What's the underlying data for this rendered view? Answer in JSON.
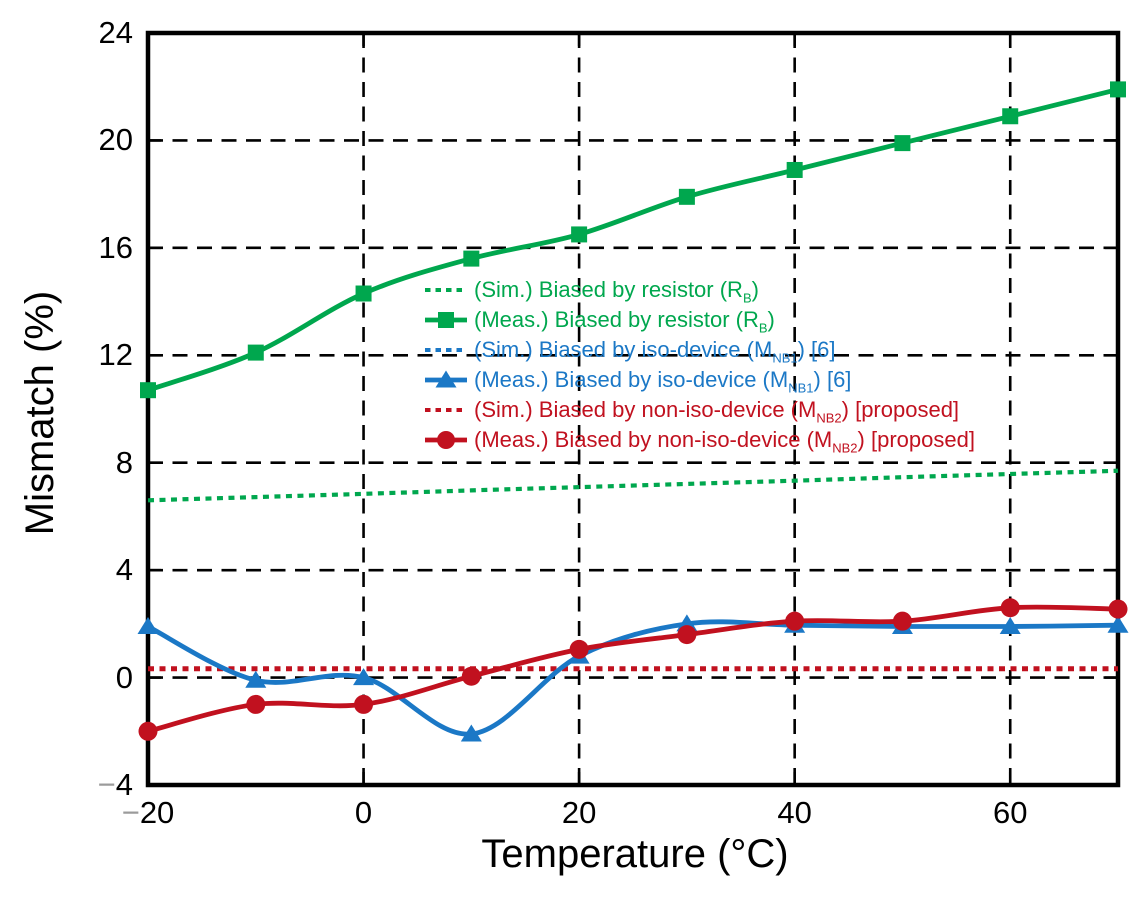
{
  "chart_data": {
    "type": "line",
    "title": "",
    "xlabel": "Temperature (°C)",
    "ylabel": "Mismatch (%)",
    "xlim": [
      -20,
      70
    ],
    "ylim": [
      -4,
      24
    ],
    "x_ticks": [
      -20,
      0,
      20,
      40,
      60
    ],
    "y_ticks": [
      -4,
      0,
      4,
      8,
      12,
      16,
      20,
      24
    ],
    "grid": "dashed black gridlines at interior ticks, boxed axes",
    "legend_position": "inside center-left, stacked rows, no border",
    "x": [
      -20,
      -10,
      0,
      10,
      20,
      30,
      40,
      50,
      60,
      70
    ],
    "series": [
      {
        "name": "(Sim.) Biased by resistor (RB)",
        "color": "#00A74E",
        "style": "dotted",
        "marker": "none",
        "values": [
          6.6,
          6.72,
          6.84,
          6.97,
          7.09,
          7.21,
          7.33,
          7.46,
          7.58,
          7.7
        ]
      },
      {
        "name": "(Meas.) Biased by resistor (RB)",
        "color": "#00A74E",
        "style": "solid",
        "marker": "square",
        "values": [
          10.7,
          12.1,
          14.3,
          15.6,
          16.5,
          17.9,
          18.9,
          19.9,
          20.9,
          21.9
        ]
      },
      {
        "name": "(Sim.) Biased by iso-device (MNB1) [6]",
        "color": "#1B78C6",
        "style": "dotted",
        "marker": "none",
        "values": [
          0.33,
          0.33,
          0.33,
          0.33,
          0.33,
          0.33,
          0.33,
          0.33,
          0.33,
          0.33
        ]
      },
      {
        "name": "(Meas.) Biased by iso-device (MNB1) [6]",
        "color": "#1B78C6",
        "style": "solid",
        "marker": "triangle",
        "values": [
          1.9,
          -0.1,
          0.0,
          -2.1,
          0.8,
          2.0,
          1.95,
          1.9,
          1.9,
          1.95
        ]
      },
      {
        "name": "(Sim.) Biased by non-iso-device (MNB2) [proposed]",
        "color": "#C1111F",
        "style": "dotted",
        "marker": "none",
        "values": [
          0.33,
          0.33,
          0.33,
          0.33,
          0.33,
          0.33,
          0.33,
          0.33,
          0.33,
          0.33
        ]
      },
      {
        "name": "(Meas.) Biased by non-iso-device (MNB2) [proposed]",
        "color": "#C1111F",
        "style": "solid",
        "marker": "circle",
        "values": [
          -2.0,
          -1.0,
          -1.0,
          0.05,
          1.05,
          1.6,
          2.1,
          2.1,
          2.6,
          2.55
        ]
      }
    ],
    "legend_items": [
      {
        "series": 0,
        "segments": [
          {
            "t": "(Sim.) Biased by resistor (R"
          },
          {
            "s": "B"
          },
          {
            "t": ")"
          }
        ]
      },
      {
        "series": 1,
        "segments": [
          {
            "t": "(Meas.) Biased by resistor (R"
          },
          {
            "s": "B"
          },
          {
            "t": ")"
          }
        ]
      },
      {
        "series": 2,
        "segments": [
          {
            "t": "(Sim.) Biased by iso-device (M"
          },
          {
            "s": "NB1"
          },
          {
            "t": ") [6]"
          }
        ]
      },
      {
        "series": 3,
        "segments": [
          {
            "t": "(Meas.) Biased by iso-device (M"
          },
          {
            "s": "NB1"
          },
          {
            "t": ") [6]"
          }
        ]
      },
      {
        "series": 4,
        "segments": [
          {
            "t": "(Sim.) Biased by non-iso-device (M"
          },
          {
            "s": "NB2"
          },
          {
            "t": ") [proposed]"
          }
        ]
      },
      {
        "series": 5,
        "segments": [
          {
            "t": "(Meas.) Biased by non-iso-device (M"
          },
          {
            "s": "NB2"
          },
          {
            "t": ") [proposed]"
          }
        ]
      }
    ],
    "colors": {
      "green_series": "#00A74E",
      "blue_series": "#1B78C6",
      "red_series": "#C1111F",
      "axis_frame": "#000000",
      "gridline": "#000000",
      "negative_sign_gray": "#9b9b9b",
      "background": "#ffffff"
    }
  }
}
